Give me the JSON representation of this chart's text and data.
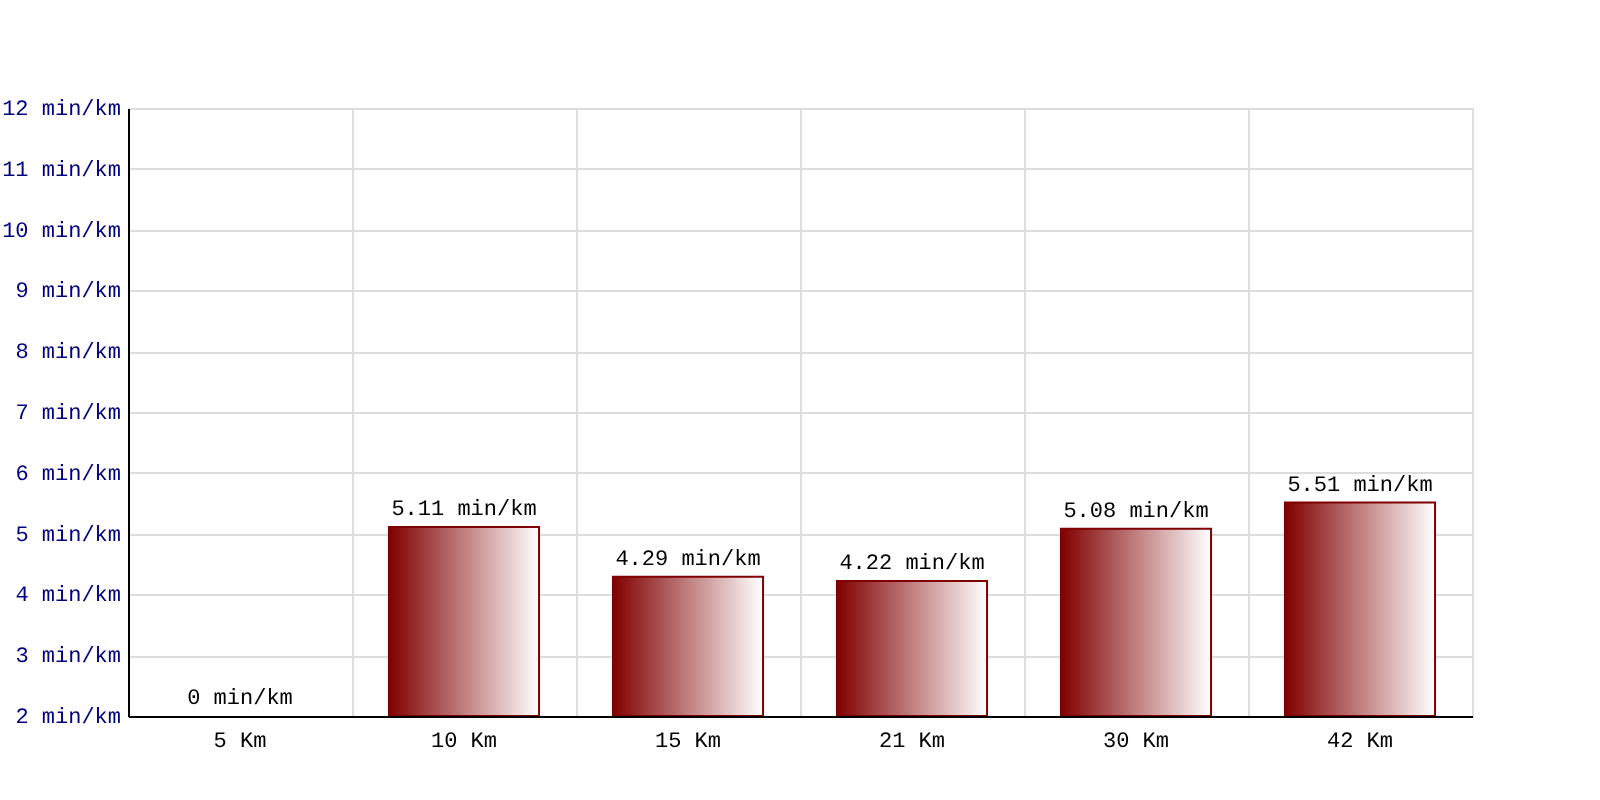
{
  "chart_data": {
    "type": "bar",
    "categories": [
      "5 Km",
      "10 Km",
      "15 Km",
      "21 Km",
      "30 Km",
      "42 Km"
    ],
    "values": [
      null,
      5.11,
      4.29,
      4.22,
      5.08,
      5.51
    ],
    "value_labels": [
      "0 min/km",
      "5.11 min/km",
      "4.29 min/km",
      "4.22 min/km",
      "5.08 min/km",
      "5.51 min/km"
    ],
    "color": "#800000",
    "ylim": [
      2,
      12
    ],
    "yticks": [
      {
        "value": 2,
        "label": "2 min/km"
      },
      {
        "value": 3,
        "label": "3 min/km"
      },
      {
        "value": 4,
        "label": "4 min/km"
      },
      {
        "value": 5,
        "label": "5 min/km"
      },
      {
        "value": 6,
        "label": "6 min/km"
      },
      {
        "value": 7,
        "label": "7 min/km"
      },
      {
        "value": 8,
        "label": "8 min/km"
      },
      {
        "value": 9,
        "label": "9 min/km"
      },
      {
        "value": 10,
        "label": "10 min/km"
      },
      {
        "value": 11,
        "label": "11 min/km"
      },
      {
        "value": 12,
        "label": "12 min/km"
      }
    ],
    "grid": true
  }
}
